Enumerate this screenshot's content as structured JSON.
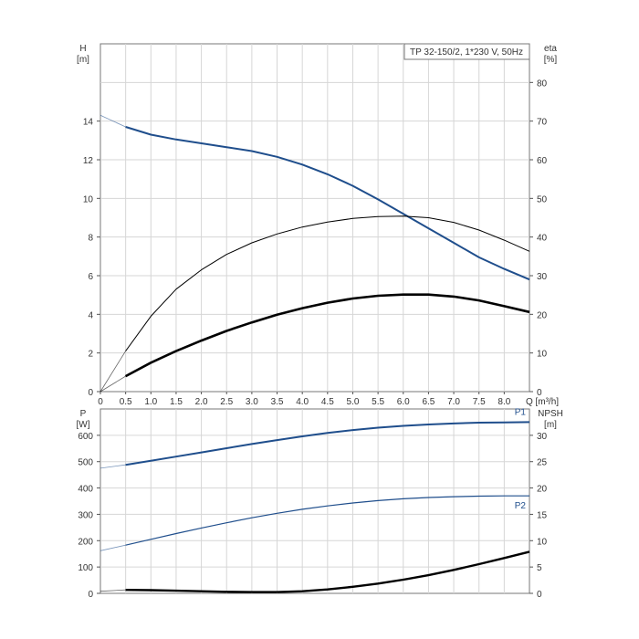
{
  "chart_data": [
    {
      "type": "line",
      "title": "TP 32-150/2, 1*230 V, 50Hz",
      "xlabel": "Q [m³/h]",
      "xlim": [
        0,
        8.5
      ],
      "x_ticks": [
        "0",
        "0.5",
        "1.0",
        "1.5",
        "2.0",
        "2.5",
        "3.0",
        "3.5",
        "4.0",
        "4.5",
        "5.0",
        "5.5",
        "6.0",
        "6.5",
        "7.0",
        "7.5",
        "8.0"
      ],
      "y_axis_left": {
        "label": "H",
        "unit": "[m]",
        "ylim": [
          0,
          18
        ],
        "ticks": [
          "0",
          "2",
          "4",
          "6",
          "8",
          "10",
          "12",
          "14"
        ]
      },
      "y_axis_right": {
        "label": "eta",
        "unit": "[%]",
        "ylim": [
          0,
          90
        ],
        "ticks": [
          "0",
          "10",
          "20",
          "30",
          "40",
          "50",
          "60",
          "70",
          "80"
        ]
      },
      "grid": true,
      "series": [
        {
          "axis": "left",
          "color": "#1f4e8c",
          "x": [
            0,
            0.5,
            1.0,
            1.5,
            2.0,
            2.5,
            3.0,
            3.5,
            4.0,
            4.5,
            5.0,
            5.5,
            6.0,
            6.5,
            7.0,
            7.5,
            8.0,
            8.5
          ],
          "y": [
            14.3,
            13.7,
            13.3,
            13.05,
            12.85,
            12.65,
            12.45,
            12.15,
            11.75,
            11.25,
            10.65,
            9.95,
            9.2,
            8.45,
            7.7,
            6.95,
            6.35,
            5.8
          ]
        },
        {
          "axis": "right",
          "color": "#000000",
          "x": [
            0,
            0.5,
            1.0,
            1.5,
            2.0,
            2.5,
            3.0,
            3.5,
            4.0,
            4.5,
            5.0,
            5.5,
            6.0,
            6.5,
            7.0,
            7.5,
            8.0,
            8.5
          ],
          "y": [
            0,
            10.5,
            19.5,
            26.5,
            31.5,
            35.5,
            38.5,
            40.8,
            42.6,
            43.9,
            44.8,
            45.3,
            45.4,
            45.0,
            43.8,
            41.8,
            39.2,
            36.3
          ]
        },
        {
          "axis": "right",
          "color": "#000000",
          "x": [
            0,
            0.5,
            1.0,
            1.5,
            2.0,
            2.5,
            3.0,
            3.5,
            4.0,
            4.5,
            5.0,
            5.5,
            6.0,
            6.5,
            7.0,
            7.5,
            8.0,
            8.5
          ],
          "y": [
            0,
            4.0,
            7.5,
            10.5,
            13.2,
            15.7,
            17.9,
            19.9,
            21.6,
            23.0,
            24.1,
            24.8,
            25.1,
            25.1,
            24.6,
            23.6,
            22.1,
            20.6
          ]
        }
      ]
    },
    {
      "type": "line",
      "xlim": [
        0,
        8.5
      ],
      "y_axis_left": {
        "label": "P",
        "unit": "[W]",
        "ylim": [
          0,
          700
        ],
        "ticks": [
          "0",
          "100",
          "200",
          "300",
          "400",
          "500",
          "600"
        ]
      },
      "y_axis_right": {
        "label": "NPSH",
        "unit": "[m]",
        "ylim": [
          0,
          35
        ],
        "ticks": [
          "0",
          "5",
          "10",
          "15",
          "20",
          "25",
          "30"
        ]
      },
      "grid": true,
      "series": [
        {
          "name": "P1",
          "axis": "left",
          "color": "#1f4e8c",
          "x": [
            0,
            0.5,
            1.0,
            1.5,
            2.0,
            2.5,
            3.0,
            3.5,
            4.0,
            4.5,
            5.0,
            5.5,
            6.0,
            6.5,
            7.0,
            7.5,
            8.0,
            8.5
          ],
          "y": [
            475,
            488,
            503,
            519,
            535,
            551,
            567,
            582,
            596,
            609,
            620,
            629,
            636,
            641,
            645,
            648,
            649,
            650
          ]
        },
        {
          "name": "P2",
          "axis": "left",
          "color": "#1f4e8c",
          "x": [
            0,
            0.5,
            1.0,
            1.5,
            2.0,
            2.5,
            3.0,
            3.5,
            4.0,
            4.5,
            5.0,
            5.5,
            6.0,
            6.5,
            7.0,
            7.5,
            8.0,
            8.5
          ],
          "y": [
            162,
            183,
            205,
            227,
            248,
            268,
            287,
            304,
            319,
            332,
            343,
            352,
            359,
            364,
            367,
            369,
            370,
            370
          ]
        },
        {
          "axis": "right",
          "color": "#000000",
          "x": [
            0,
            0.5,
            1.0,
            1.5,
            2.0,
            2.5,
            3.0,
            3.5,
            4.0,
            4.5,
            5.0,
            5.5,
            6.0,
            6.5,
            7.0,
            7.5,
            8.0,
            8.5
          ],
          "y": [
            0.4,
            0.65,
            0.6,
            0.5,
            0.4,
            0.3,
            0.25,
            0.25,
            0.4,
            0.75,
            1.25,
            1.85,
            2.6,
            3.45,
            4.45,
            5.55,
            6.7,
            7.9
          ]
        }
      ]
    }
  ]
}
